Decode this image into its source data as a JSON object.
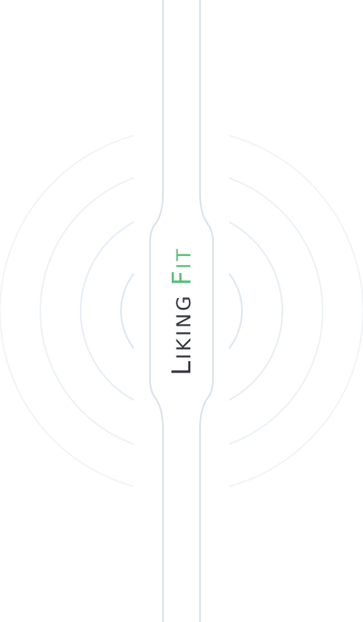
{
  "splash": {
    "brand": {
      "first_initial": "L",
      "first_rest": "IKING",
      "second_initial": "F",
      "second_rest": "IT"
    }
  },
  "colors": {
    "background": "#ffffff",
    "band_stroke": "#d9e1ea",
    "ring_outer": "#f1f4f7",
    "ring_mid": "#e8eef4",
    "ring_inner": "#dde6ef",
    "brand_dark": "#32363c",
    "brand_green": "#58be78"
  },
  "icons": {
    "background": "concentric-rings-icon",
    "device": "fitness-band-icon"
  }
}
